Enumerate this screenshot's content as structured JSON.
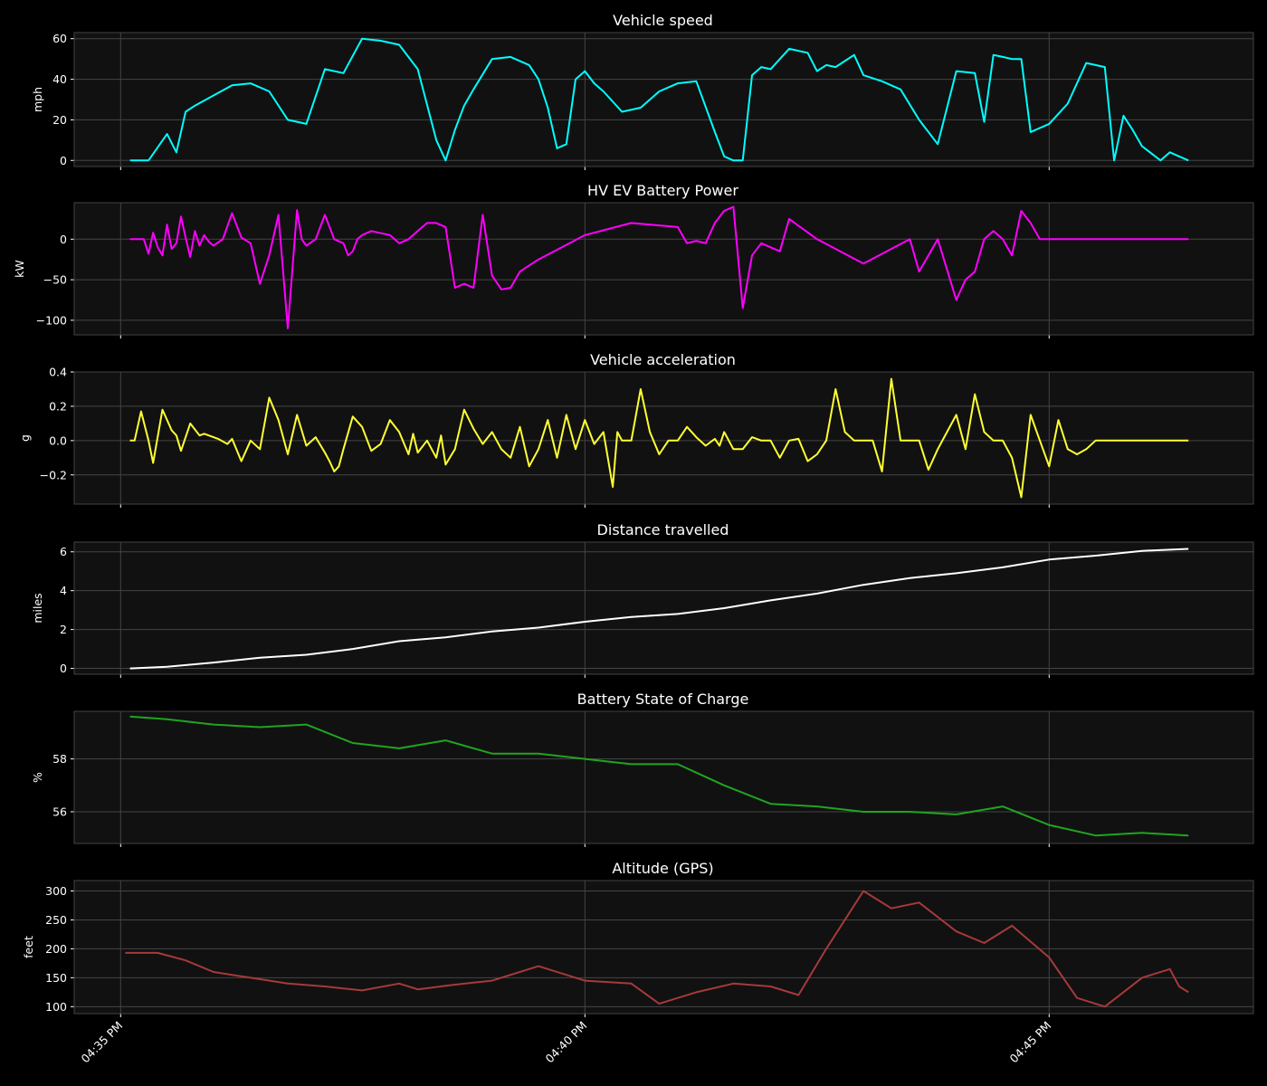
{
  "chart_data": [
    {
      "type": "line",
      "title": "Vehicle speed",
      "ylabel": "mph",
      "color": "#00ffff",
      "ylim": [
        -3,
        63
      ],
      "yticks": [
        0,
        20,
        40,
        60
      ],
      "series": [
        {
          "x": [
            0.1,
            0.3,
            0.5,
            0.6,
            0.7,
            0.8,
            1.0,
            1.2,
            1.4,
            1.6,
            1.8,
            2.0,
            2.2,
            2.4,
            2.6,
            2.8,
            3.0,
            3.2,
            3.4,
            3.5,
            3.6,
            3.7,
            3.8,
            4.0,
            4.2,
            4.4,
            4.5,
            4.6,
            4.7,
            4.8,
            4.9,
            5.0,
            5.1,
            5.2,
            5.4,
            5.6,
            5.8,
            6.0,
            6.2,
            6.4,
            6.5,
            6.6,
            6.7,
            6.8,
            6.9,
            7.0,
            7.2,
            7.4,
            7.5,
            7.6,
            7.7,
            7.8,
            7.9,
            8.0,
            8.2,
            8.4,
            8.6,
            8.8,
            9.0,
            9.2,
            9.3,
            9.4,
            9.5,
            9.6,
            9.7,
            9.8,
            10.0,
            10.2,
            10.4,
            10.5,
            10.6,
            10.7,
            10.8,
            10.9,
            11.0,
            11.2,
            11.3,
            11.4,
            11.5
          ],
          "y": [
            0,
            0,
            13,
            4,
            24,
            27,
            32,
            37,
            38,
            34,
            20,
            18,
            45,
            43,
            60,
            59,
            57,
            45,
            10,
            0,
            15,
            27,
            35,
            50,
            51,
            47,
            40,
            26,
            6,
            8,
            40,
            44,
            38,
            34,
            24,
            26,
            34,
            38,
            39,
            14,
            2,
            0,
            0,
            42,
            46,
            45,
            55,
            53,
            44,
            47,
            46,
            49,
            52,
            42,
            39,
            35,
            20,
            8,
            44,
            43,
            19,
            52,
            51,
            50,
            50,
            14,
            18,
            28,
            48,
            47,
            46,
            0,
            22,
            15,
            7,
            0,
            4,
            2,
            0
          ]
        }
      ]
    },
    {
      "type": "line",
      "title": "HV EV Battery Power",
      "ylabel": "kW",
      "color": "#ff00ff",
      "ylim": [
        -118,
        45
      ],
      "yticks": [
        0,
        -50,
        -100
      ],
      "ytick_labels": [
        "0",
        "−50",
        "−100"
      ],
      "series": [
        {
          "x": [
            0.1,
            0.25,
            0.3,
            0.35,
            0.4,
            0.45,
            0.5,
            0.55,
            0.6,
            0.65,
            0.7,
            0.75,
            0.8,
            0.85,
            0.9,
            0.95,
            1.0,
            1.1,
            1.2,
            1.3,
            1.4,
            1.5,
            1.6,
            1.7,
            1.8,
            1.9,
            1.95,
            2.0,
            2.1,
            2.2,
            2.3,
            2.4,
            2.45,
            2.5,
            2.55,
            2.6,
            2.7,
            2.9,
            3.0,
            3.1,
            3.2,
            3.3,
            3.4,
            3.5,
            3.6,
            3.7,
            3.8,
            3.9,
            4.0,
            4.1,
            4.2,
            4.3,
            4.5,
            5.0,
            5.5,
            6.0,
            6.1,
            6.2,
            6.3,
            6.4,
            6.5,
            6.6,
            6.7,
            6.8,
            6.9,
            7.0,
            7.1,
            7.2,
            7.5,
            8.0,
            8.5,
            8.6,
            8.7,
            8.8,
            9.0,
            9.1,
            9.2,
            9.3,
            9.4,
            9.5,
            9.6,
            9.7,
            9.8,
            9.9,
            10.0,
            10.1,
            10.2,
            10.3,
            10.4,
            10.5,
            10.6,
            10.7,
            10.8,
            10.9,
            11.0,
            11.2,
            11.4,
            11.5
          ],
          "y": [
            0,
            0,
            -18,
            8,
            -10,
            -20,
            18,
            -12,
            -5,
            28,
            2,
            -22,
            10,
            -8,
            5,
            -3,
            -8,
            0,
            32,
            2,
            -5,
            -55,
            -20,
            30,
            -110,
            36,
            0,
            -8,
            0,
            30,
            0,
            -5,
            -20,
            -15,
            0,
            5,
            10,
            5,
            -5,
            0,
            10,
            20,
            20,
            15,
            -60,
            -55,
            -60,
            30,
            -45,
            -62,
            -60,
            -40,
            -25,
            5,
            20,
            15,
            -5,
            -2,
            -5,
            20,
            35,
            40,
            -85,
            -20,
            -5,
            -10,
            -15,
            25,
            0,
            -30,
            0,
            -40,
            -20,
            0,
            -75,
            -50,
            -40,
            0,
            10,
            0,
            -20,
            35,
            20,
            0,
            0,
            0,
            0,
            0,
            0,
            0,
            0,
            0,
            0,
            0,
            0,
            0,
            0,
            0
          ]
        }
      ]
    },
    {
      "type": "line",
      "title": "Vehicle acceleration",
      "ylabel": "g",
      "color": "#ffff33",
      "ylim": [
        -0.37,
        0.4
      ],
      "yticks": [
        0.4,
        0.2,
        0.0,
        -0.2
      ],
      "ytick_labels": [
        "0.4",
        "0.2",
        "0.0",
        "−0.2"
      ],
      "series": [
        {
          "x": [
            0.1,
            0.15,
            0.22,
            0.3,
            0.35,
            0.45,
            0.55,
            0.6,
            0.65,
            0.75,
            0.85,
            0.9,
            0.95,
            1.05,
            1.15,
            1.2,
            1.3,
            1.4,
            1.5,
            1.6,
            1.7,
            1.8,
            1.9,
            2.0,
            2.1,
            2.2,
            2.25,
            2.3,
            2.35,
            2.4,
            2.5,
            2.6,
            2.7,
            2.8,
            2.9,
            3.0,
            3.1,
            3.15,
            3.2,
            3.3,
            3.4,
            3.45,
            3.5,
            3.6,
            3.7,
            3.8,
            3.9,
            4.0,
            4.1,
            4.2,
            4.3,
            4.4,
            4.5,
            4.6,
            4.7,
            4.8,
            4.9,
            5.0,
            5.1,
            5.2,
            5.3,
            5.35,
            5.4,
            5.5,
            5.6,
            5.7,
            5.8,
            5.9,
            6.0,
            6.1,
            6.2,
            6.3,
            6.4,
            6.45,
            6.5,
            6.6,
            6.7,
            6.8,
            6.9,
            7.0,
            7.1,
            7.2,
            7.3,
            7.4,
            7.5,
            7.6,
            7.7,
            7.8,
            7.9,
            8.0,
            8.1,
            8.2,
            8.3,
            8.4,
            8.5,
            8.6,
            8.7,
            8.8,
            8.9,
            9.0,
            9.1,
            9.2,
            9.3,
            9.4,
            9.5,
            9.6,
            9.7,
            9.8,
            9.9,
            10.0,
            10.1,
            10.2,
            10.3,
            10.4,
            10.5,
            10.6,
            10.7,
            10.8,
            10.9,
            11.0,
            11.1,
            11.2,
            11.3,
            11.4,
            11.5
          ],
          "y": [
            0,
            0,
            0.17,
            0,
            -0.13,
            0.18,
            0.06,
            0.03,
            -0.06,
            0.1,
            0.03,
            0.04,
            0.03,
            0.01,
            -0.02,
            0.01,
            -0.12,
            0.0,
            -0.05,
            0.25,
            0.12,
            -0.08,
            0.15,
            -0.03,
            0.02,
            -0.07,
            -0.12,
            -0.18,
            -0.15,
            -0.05,
            0.14,
            0.08,
            -0.06,
            -0.02,
            0.12,
            0.05,
            -0.08,
            0.04,
            -0.07,
            0.0,
            -0.1,
            0.03,
            -0.14,
            -0.05,
            0.18,
            0.07,
            -0.02,
            0.05,
            -0.05,
            -0.1,
            0.08,
            -0.15,
            -0.05,
            0.12,
            -0.1,
            0.15,
            -0.05,
            0.12,
            -0.02,
            0.05,
            -0.27,
            0.05,
            0.0,
            0.0,
            0.3,
            0.05,
            -0.08,
            0.0,
            0.0,
            0.08,
            0.02,
            -0.03,
            0.01,
            -0.03,
            0.05,
            -0.05,
            -0.05,
            0.02,
            0.0,
            0.0,
            -0.1,
            0.0,
            0.01,
            -0.12,
            -0.08,
            0.0,
            0.3,
            0.05,
            0.0,
            0.0,
            0.0,
            -0.18,
            0.36,
            0.0,
            0.0,
            0.0,
            -0.17,
            -0.05,
            0.05,
            0.15,
            -0.05,
            0.27,
            0.05,
            0.0,
            0.0,
            -0.1,
            -0.33,
            0.15,
            0.0,
            -0.15,
            0.12,
            -0.05,
            -0.08,
            -0.05,
            0.0,
            0.0,
            0.0,
            0.0,
            0.0,
            0.0,
            0.0,
            0.0,
            0.0,
            0.0,
            0.0
          ]
        }
      ]
    },
    {
      "type": "line",
      "title": "Distance travelled",
      "ylabel": "miles",
      "color": "#ffffff",
      "ylim": [
        -0.3,
        6.5
      ],
      "yticks": [
        0,
        2,
        4,
        6
      ],
      "series": [
        {
          "x": [
            0.1,
            0.5,
            1.0,
            1.5,
            2.0,
            2.5,
            3.0,
            3.5,
            4.0,
            4.5,
            5.0,
            5.5,
            6.0,
            6.5,
            7.0,
            7.5,
            8.0,
            8.5,
            9.0,
            9.5,
            10.0,
            10.5,
            11.0,
            11.5
          ],
          "y": [
            0,
            0.08,
            0.3,
            0.55,
            0.7,
            1.0,
            1.4,
            1.6,
            1.9,
            2.1,
            2.4,
            2.65,
            2.8,
            3.1,
            3.5,
            3.85,
            4.3,
            4.65,
            4.9,
            5.2,
            5.6,
            5.8,
            6.05,
            6.15
          ]
        }
      ]
    },
    {
      "type": "line",
      "title": "Battery State of Charge",
      "ylabel": "%",
      "color": "#1fa51f",
      "ylim": [
        54.8,
        59.8
      ],
      "yticks": [
        58,
        56
      ],
      "series": [
        {
          "x": [
            0.1,
            0.5,
            1.0,
            1.5,
            2.0,
            2.5,
            3.0,
            3.5,
            4.0,
            4.5,
            5.0,
            5.5,
            6.0,
            6.5,
            7.0,
            7.5,
            8.0,
            8.5,
            9.0,
            9.5,
            10.0,
            10.5,
            11.0,
            11.5
          ],
          "y": [
            59.6,
            59.5,
            59.3,
            59.2,
            59.3,
            58.6,
            58.4,
            58.7,
            58.2,
            58.2,
            58.0,
            57.8,
            57.8,
            57.0,
            56.3,
            56.2,
            56.0,
            56.0,
            55.9,
            56.2,
            55.5,
            55.1,
            55.2,
            55.1
          ]
        }
      ]
    },
    {
      "type": "line",
      "title": "Altitude (GPS)",
      "ylabel": "feet",
      "color": "#a63a3a",
      "ylim": [
        88,
        318
      ],
      "yticks": [
        100,
        150,
        200,
        250,
        300
      ],
      "series": [
        {
          "x": [
            0.05,
            0.4,
            0.7,
            1.0,
            1.4,
            1.8,
            2.2,
            2.6,
            3.0,
            3.2,
            3.6,
            4.0,
            4.5,
            5.0,
            5.5,
            5.8,
            6.2,
            6.6,
            7.0,
            7.3,
            7.6,
            8.0,
            8.3,
            8.6,
            9.0,
            9.3,
            9.6,
            10.0,
            10.3,
            10.6,
            11.0,
            11.3,
            11.4,
            11.5
          ],
          "y": [
            193,
            193,
            180,
            160,
            150,
            140,
            135,
            128,
            140,
            130,
            138,
            145,
            170,
            145,
            140,
            105,
            125,
            140,
            135,
            120,
            200,
            300,
            270,
            280,
            230,
            210,
            240,
            185,
            115,
            100,
            150,
            165,
            135,
            125
          ]
        }
      ]
    }
  ],
  "x_axis": {
    "range": [
      -0.5,
      12.2
    ],
    "ticks": [
      0,
      5,
      10
    ],
    "tick_labels": [
      "04:35 PM",
      "04:40 PM",
      "04:45 PM"
    ]
  },
  "style": {
    "figure_background": "#000000",
    "axes_background": "#111111",
    "grid_color": "#444444",
    "spine_color": "#444444"
  }
}
